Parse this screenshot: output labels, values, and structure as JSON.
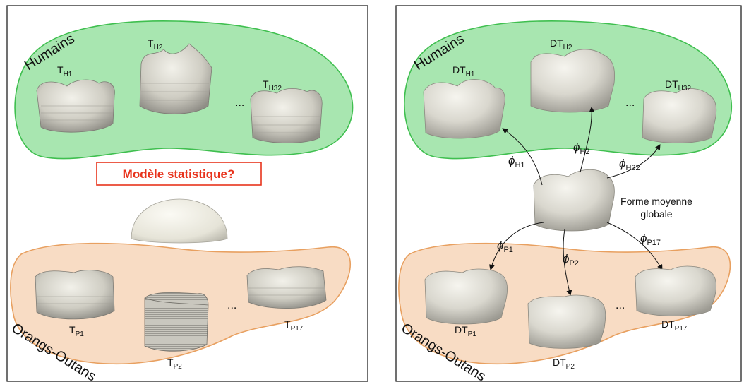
{
  "left_panel": {
    "group_top_label": "Humains",
    "group_bottom_label": "Orangs-Outans",
    "statistical_model_question": "Modèle statistique?",
    "ellipsis_top": "...",
    "ellipsis_bottom": "...",
    "human_teeth": [
      {
        "base": "T",
        "sub": "H1"
      },
      {
        "base": "T",
        "sub": "H2"
      },
      {
        "base": "T",
        "sub": "H32"
      }
    ],
    "orang_teeth": [
      {
        "base": "T",
        "sub": "P1"
      },
      {
        "base": "T",
        "sub": "P2"
      },
      {
        "base": "T",
        "sub": "P17"
      }
    ]
  },
  "right_panel": {
    "group_top_label": "Humains",
    "group_bottom_label": "Orangs-Outans",
    "mean_shape_line1": "Forme moyenne",
    "mean_shape_line2": "globale",
    "ellipsis_top": "...",
    "ellipsis_bottom": "...",
    "human_teeth": [
      {
        "base": "DT",
        "sub": "H1"
      },
      {
        "base": "DT",
        "sub": "H2"
      },
      {
        "base": "DT",
        "sub": "H32"
      }
    ],
    "orang_teeth": [
      {
        "base": "DT",
        "sub": "P1"
      },
      {
        "base": "DT",
        "sub": "P2"
      },
      {
        "base": "DT",
        "sub": "P17"
      }
    ],
    "deformations": [
      {
        "base": "ϕ",
        "sub": "H1"
      },
      {
        "base": "ϕ",
        "sub": "H2"
      },
      {
        "base": "ϕ",
        "sub": "H32"
      },
      {
        "base": "ϕ",
        "sub": "P1"
      },
      {
        "base": "ϕ",
        "sub": "P2"
      },
      {
        "base": "ϕ",
        "sub": "P17"
      }
    ]
  },
  "colors": {
    "human_fill": "#a8e6b0",
    "human_stroke": "#3fbf4f",
    "orang_fill": "#f8dcc4",
    "orang_stroke": "#e8a060",
    "question_color": "#e8331c",
    "tooth_fill": "#d8d6cc"
  }
}
